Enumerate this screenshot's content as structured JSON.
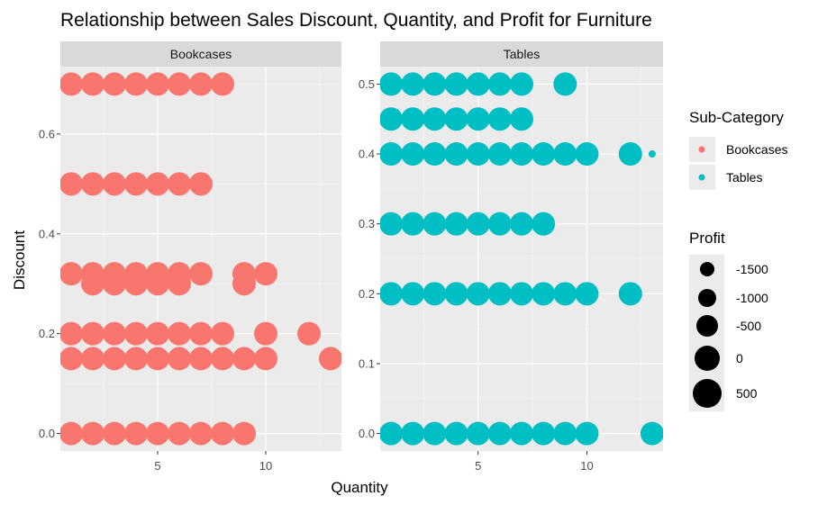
{
  "chart_data": {
    "type": "scatter",
    "title": "Relationship between Sales Discount, Quantity, and Profit for Furniture",
    "xlabel": "Quantity",
    "ylabel": "Discount",
    "color_legend": {
      "title": "Sub-Category",
      "entries": [
        {
          "name": "Bookcases",
          "color": "#F8766D"
        },
        {
          "name": "Tables",
          "color": "#00BFC4"
        }
      ]
    },
    "size_legend": {
      "title": "Profit",
      "entries": [
        {
          "label": "-1500",
          "value": -1500
        },
        {
          "label": "-1000",
          "value": -1000
        },
        {
          "label": "-500",
          "value": -500
        },
        {
          "label": "0",
          "value": 0
        },
        {
          "label": "500",
          "value": 500
        }
      ]
    },
    "facets": [
      {
        "name": "Bookcases",
        "color": "#F8766D",
        "xlim": [
          0.5,
          13.5
        ],
        "ylim": [
          -0.035,
          0.735
        ],
        "xticks": [
          5,
          10
        ],
        "yticks": [
          0.0,
          0.2,
          0.4,
          0.6
        ],
        "ytick_labels": [
          "0.0",
          "0.2",
          "0.4",
          "0.6"
        ],
        "points": [
          {
            "x": 1,
            "y": 0.7
          },
          {
            "x": 2,
            "y": 0.7
          },
          {
            "x": 3,
            "y": 0.7
          },
          {
            "x": 4,
            "y": 0.7
          },
          {
            "x": 5,
            "y": 0.7
          },
          {
            "x": 6,
            "y": 0.7
          },
          {
            "x": 7,
            "y": 0.7
          },
          {
            "x": 8,
            "y": 0.7
          },
          {
            "x": 1,
            "y": 0.5
          },
          {
            "x": 2,
            "y": 0.5
          },
          {
            "x": 3,
            "y": 0.5
          },
          {
            "x": 4,
            "y": 0.5
          },
          {
            "x": 5,
            "y": 0.5
          },
          {
            "x": 6,
            "y": 0.5
          },
          {
            "x": 7,
            "y": 0.5
          },
          {
            "x": 1,
            "y": 0.32
          },
          {
            "x": 2,
            "y": 0.32
          },
          {
            "x": 3,
            "y": 0.32
          },
          {
            "x": 4,
            "y": 0.32
          },
          {
            "x": 5,
            "y": 0.32
          },
          {
            "x": 6,
            "y": 0.32
          },
          {
            "x": 7,
            "y": 0.32
          },
          {
            "x": 9,
            "y": 0.32
          },
          {
            "x": 10,
            "y": 0.32
          },
          {
            "x": 2,
            "y": 0.3
          },
          {
            "x": 3,
            "y": 0.3
          },
          {
            "x": 4,
            "y": 0.3
          },
          {
            "x": 5,
            "y": 0.3
          },
          {
            "x": 6,
            "y": 0.3
          },
          {
            "x": 9,
            "y": 0.3
          },
          {
            "x": 1,
            "y": 0.2
          },
          {
            "x": 2,
            "y": 0.2
          },
          {
            "x": 3,
            "y": 0.2
          },
          {
            "x": 4,
            "y": 0.2
          },
          {
            "x": 5,
            "y": 0.2
          },
          {
            "x": 6,
            "y": 0.2
          },
          {
            "x": 7,
            "y": 0.2
          },
          {
            "x": 8,
            "y": 0.2
          },
          {
            "x": 10,
            "y": 0.2
          },
          {
            "x": 12,
            "y": 0.2
          },
          {
            "x": 1,
            "y": 0.15
          },
          {
            "x": 2,
            "y": 0.15
          },
          {
            "x": 3,
            "y": 0.15
          },
          {
            "x": 4,
            "y": 0.15
          },
          {
            "x": 5,
            "y": 0.15
          },
          {
            "x": 6,
            "y": 0.15
          },
          {
            "x": 7,
            "y": 0.15
          },
          {
            "x": 8,
            "y": 0.15
          },
          {
            "x": 9,
            "y": 0.15
          },
          {
            "x": 10,
            "y": 0.15
          },
          {
            "x": 13,
            "y": 0.15
          },
          {
            "x": 1,
            "y": 0.0
          },
          {
            "x": 2,
            "y": 0.0
          },
          {
            "x": 3,
            "y": 0.0
          },
          {
            "x": 4,
            "y": 0.0
          },
          {
            "x": 5,
            "y": 0.0
          },
          {
            "x": 6,
            "y": 0.0
          },
          {
            "x": 7,
            "y": 0.0
          },
          {
            "x": 8,
            "y": 0.0
          },
          {
            "x": 9,
            "y": 0.0
          }
        ]
      },
      {
        "name": "Tables",
        "color": "#00BFC4",
        "xlim": [
          0.5,
          13.5
        ],
        "ylim": [
          -0.025,
          0.525
        ],
        "xticks": [
          5,
          10
        ],
        "yticks": [
          0.0,
          0.1,
          0.2,
          0.3,
          0.4,
          0.5
        ],
        "ytick_labels": [
          "0.0",
          "0.1",
          "0.2",
          "0.3",
          "0.4",
          "0.5"
        ],
        "points": [
          {
            "x": 1,
            "y": 0.5
          },
          {
            "x": 2,
            "y": 0.5
          },
          {
            "x": 3,
            "y": 0.5
          },
          {
            "x": 4,
            "y": 0.5
          },
          {
            "x": 5,
            "y": 0.5
          },
          {
            "x": 6,
            "y": 0.5
          },
          {
            "x": 7,
            "y": 0.5
          },
          {
            "x": 9,
            "y": 0.5
          },
          {
            "x": 1,
            "y": 0.45
          },
          {
            "x": 2,
            "y": 0.45
          },
          {
            "x": 3,
            "y": 0.45
          },
          {
            "x": 4,
            "y": 0.45
          },
          {
            "x": 5,
            "y": 0.45
          },
          {
            "x": 6,
            "y": 0.45
          },
          {
            "x": 7,
            "y": 0.45
          },
          {
            "x": 1,
            "y": 0.4
          },
          {
            "x": 2,
            "y": 0.4
          },
          {
            "x": 3,
            "y": 0.4
          },
          {
            "x": 4,
            "y": 0.4
          },
          {
            "x": 5,
            "y": 0.4
          },
          {
            "x": 6,
            "y": 0.4
          },
          {
            "x": 7,
            "y": 0.4
          },
          {
            "x": 8,
            "y": 0.4
          },
          {
            "x": 9,
            "y": 0.4
          },
          {
            "x": 10,
            "y": 0.4
          },
          {
            "x": 12,
            "y": 0.4
          },
          {
            "x": 13,
            "y": 0.4,
            "small": true
          },
          {
            "x": 1,
            "y": 0.3
          },
          {
            "x": 2,
            "y": 0.3
          },
          {
            "x": 3,
            "y": 0.3
          },
          {
            "x": 4,
            "y": 0.3
          },
          {
            "x": 5,
            "y": 0.3
          },
          {
            "x": 6,
            "y": 0.3
          },
          {
            "x": 7,
            "y": 0.3
          },
          {
            "x": 8,
            "y": 0.3
          },
          {
            "x": 1,
            "y": 0.2
          },
          {
            "x": 2,
            "y": 0.2
          },
          {
            "x": 3,
            "y": 0.2
          },
          {
            "x": 4,
            "y": 0.2
          },
          {
            "x": 5,
            "y": 0.2
          },
          {
            "x": 6,
            "y": 0.2
          },
          {
            "x": 7,
            "y": 0.2
          },
          {
            "x": 8,
            "y": 0.2
          },
          {
            "x": 9,
            "y": 0.2
          },
          {
            "x": 10,
            "y": 0.2
          },
          {
            "x": 12,
            "y": 0.2
          },
          {
            "x": 1,
            "y": 0.0
          },
          {
            "x": 2,
            "y": 0.0
          },
          {
            "x": 3,
            "y": 0.0
          },
          {
            "x": 4,
            "y": 0.0
          },
          {
            "x": 5,
            "y": 0.0
          },
          {
            "x": 6,
            "y": 0.0
          },
          {
            "x": 7,
            "y": 0.0
          },
          {
            "x": 8,
            "y": 0.0
          },
          {
            "x": 9,
            "y": 0.0
          },
          {
            "x": 10,
            "y": 0.0
          },
          {
            "x": 13,
            "y": 0.0
          }
        ]
      }
    ],
    "grid": true,
    "legend_placement": "right"
  }
}
